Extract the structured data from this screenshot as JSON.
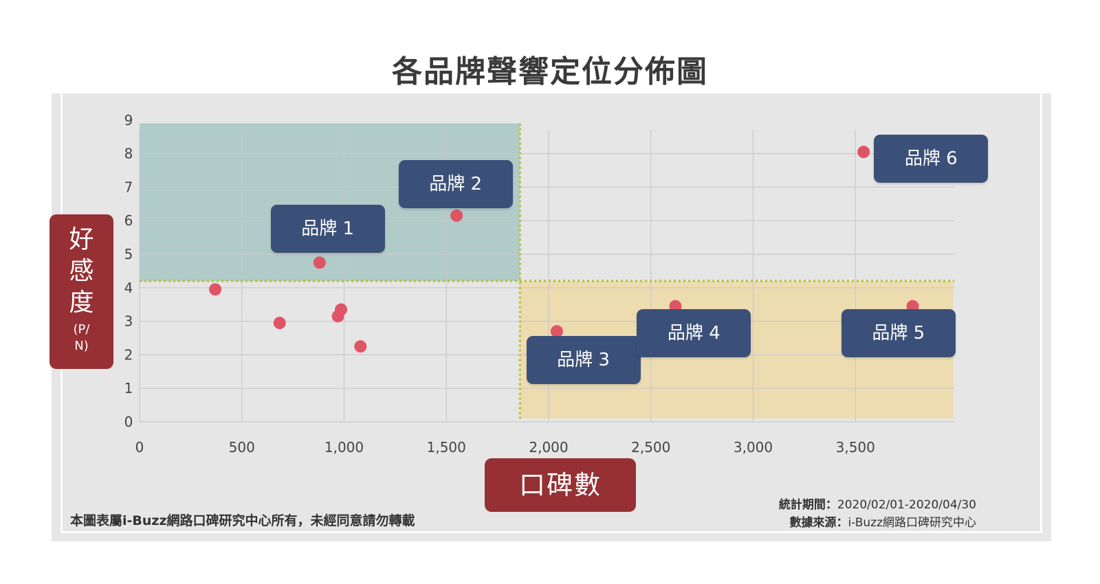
{
  "title": "各品牌聲響定位分佈圖",
  "ylabel": {
    "main": "好感度",
    "sub": "(P/N)"
  },
  "xlabel": "口碑數",
  "copyright": "本圖表屬i-Buzz網路口碑研究中心所有，未經同意請勿轉載",
  "period": {
    "label": "統計期間：",
    "value": "2020/02/01-2020/04/30"
  },
  "source": {
    "label": "數據來源：",
    "value": "i-Buzz網路口碑研究中心"
  },
  "colors": {
    "point": "#e05566",
    "quadrant_top_left": "#9dc1bd",
    "quadrant_bottom_right": "#efd9a7",
    "divider": "#b6c53b",
    "label_box": "#3b5078",
    "axis_box": "#963034",
    "grid": "#c9c9c9"
  },
  "chart_data": {
    "type": "scatter",
    "title": "各品牌聲響定位分佈圖",
    "xlabel": "口碑數",
    "ylabel": "好感度(P/N)",
    "xlim": [
      0,
      4000
    ],
    "ylim": [
      0,
      9
    ],
    "x_ticks": [
      0,
      500,
      1000,
      1500,
      2000,
      2500,
      3000,
      3500
    ],
    "x_tick_labels": [
      "0",
      "500",
      "1,000",
      "1,500",
      "2,000",
      "2,500",
      "3,000",
      "3,500"
    ],
    "y_ticks": [
      0,
      1,
      2,
      3,
      4,
      5,
      6,
      7,
      8,
      9
    ],
    "y_tick_labels": [
      "0",
      "1",
      "2",
      "3",
      "4",
      "5",
      "6",
      "7",
      "8",
      "9"
    ],
    "grid": true,
    "divider": {
      "x": 1860,
      "y": 4.2
    },
    "quadrants": [
      {
        "x": [
          0,
          1860
        ],
        "y": [
          4.2,
          8.9
        ]
      },
      {
        "x": [
          1860,
          3980
        ],
        "y": [
          0.1,
          4.2
        ]
      }
    ],
    "points": [
      {
        "x": 370,
        "y": 3.95,
        "label": ""
      },
      {
        "x": 685,
        "y": 2.95,
        "label": ""
      },
      {
        "x": 880,
        "y": 4.75,
        "label": "品牌 1"
      },
      {
        "x": 970,
        "y": 3.15,
        "label": ""
      },
      {
        "x": 985,
        "y": 3.35,
        "label": ""
      },
      {
        "x": 1080,
        "y": 2.25,
        "label": ""
      },
      {
        "x": 1550,
        "y": 6.15,
        "label": "品牌 2"
      },
      {
        "x": 2040,
        "y": 2.7,
        "label": "品牌 3"
      },
      {
        "x": 2620,
        "y": 3.45,
        "label": "品牌 4"
      },
      {
        "x": 3780,
        "y": 3.45,
        "label": "品牌 5"
      },
      {
        "x": 3540,
        "y": 8.05,
        "label": "品牌 6"
      }
    ],
    "label_boxes": [
      {
        "text": "品牌 1",
        "x": 920,
        "y": 5.75
      },
      {
        "text": "品牌 2",
        "x": 1545,
        "y": 7.1
      },
      {
        "text": "品牌 3",
        "x": 2170,
        "y": 1.85
      },
      {
        "text": "品牌 4",
        "x": 2710,
        "y": 2.65
      },
      {
        "text": "品牌 5",
        "x": 3710,
        "y": 2.65
      },
      {
        "text": "品牌 6",
        "x": 3870,
        "y": 7.85
      }
    ]
  }
}
